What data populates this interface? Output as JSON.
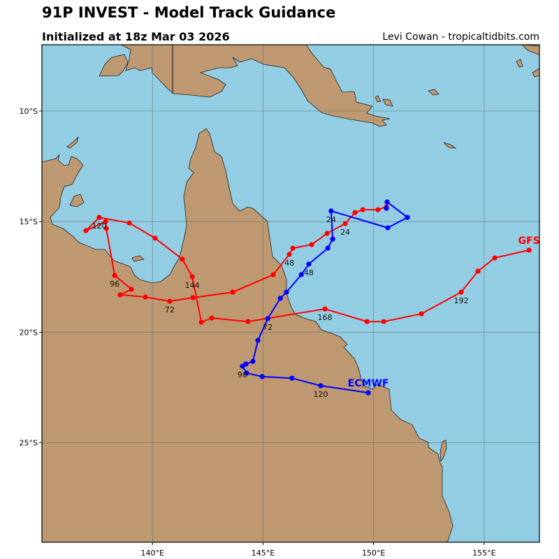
{
  "header": {
    "title": "91P INVEST - Model Track Guidance",
    "subtitle": "Initialized at 18z Mar 03 2026",
    "credit": "Levi Cowan - tropicaltidbits.com"
  },
  "map": {
    "lon_range": [
      135,
      157.5
    ],
    "lat_range_south": [
      7,
      29.5
    ],
    "lat_ticks": [
      {
        "value": 10,
        "label": "10°S"
      },
      {
        "value": 15,
        "label": "15°S"
      },
      {
        "value": 20,
        "label": "20°S"
      },
      {
        "value": 25,
        "label": "25°S"
      }
    ],
    "lon_ticks": [
      {
        "value": 140,
        "label": "140°E"
      },
      {
        "value": 145,
        "label": "145°E"
      },
      {
        "value": 150,
        "label": "150°E"
      },
      {
        "value": 155,
        "label": "155°E"
      }
    ],
    "colors": {
      "ocean": "#93CDE3",
      "land": "#BE9870",
      "grid": "#5a6b70"
    }
  },
  "tracks": [
    {
      "name": "GFS",
      "color": "#FF0000",
      "points": [
        {
          "lon": 150.58,
          "lat": 14.33
        },
        {
          "lon": 150.2,
          "lat": 14.46
        },
        {
          "lon": 149.51,
          "lat": 14.46
        },
        {
          "lon": 149.16,
          "lat": 14.59
        },
        {
          "lon": 148.72,
          "lat": 15.09,
          "label": "24"
        },
        {
          "lon": 147.9,
          "lat": 15.53
        },
        {
          "lon": 147.2,
          "lat": 16.04
        },
        {
          "lon": 146.35,
          "lat": 16.2
        },
        {
          "lon": 146.19,
          "lat": 16.48,
          "label": "48"
        },
        {
          "lon": 145.46,
          "lat": 17.4
        },
        {
          "lon": 143.63,
          "lat": 18.19
        },
        {
          "lon": 141.83,
          "lat": 18.44
        },
        {
          "lon": 140.78,
          "lat": 18.6,
          "label": "72"
        },
        {
          "lon": 139.68,
          "lat": 18.41
        },
        {
          "lon": 138.54,
          "lat": 18.31
        },
        {
          "lon": 139.05,
          "lat": 18.06
        },
        {
          "lon": 138.29,
          "lat": 17.43,
          "label": "96"
        },
        {
          "lon": 137.91,
          "lat": 15.31
        },
        {
          "lon": 137.88,
          "lat": 15.0
        },
        {
          "lon": 136.99,
          "lat": 15.41
        },
        {
          "lon": 137.59,
          "lat": 14.81,
          "label": "120"
        },
        {
          "lon": 138.95,
          "lat": 15.06
        },
        {
          "lon": 140.12,
          "lat": 15.75
        },
        {
          "lon": 141.35,
          "lat": 16.7
        },
        {
          "lon": 141.8,
          "lat": 17.49,
          "label": "144"
        },
        {
          "lon": 142.21,
          "lat": 19.55
        },
        {
          "lon": 142.68,
          "lat": 19.36
        },
        {
          "lon": 144.32,
          "lat": 19.52
        },
        {
          "lon": 147.8,
          "lat": 18.95,
          "label": "168"
        },
        {
          "lon": 149.7,
          "lat": 19.52
        },
        {
          "lon": 150.46,
          "lat": 19.52
        },
        {
          "lon": 152.16,
          "lat": 19.17
        },
        {
          "lon": 153.96,
          "lat": 18.19,
          "label": "192"
        },
        {
          "lon": 154.72,
          "lat": 17.24
        },
        {
          "lon": 155.48,
          "lat": 16.64
        },
        {
          "lon": 157.03,
          "lat": 16.29
        }
      ]
    },
    {
      "name": "ECMWF",
      "color": "#0000FF",
      "points": [
        {
          "lon": 150.58,
          "lat": 14.4
        },
        {
          "lon": 150.61,
          "lat": 14.11
        },
        {
          "lon": 151.53,
          "lat": 14.81
        },
        {
          "lon": 150.64,
          "lat": 15.28
        },
        {
          "lon": 148.08,
          "lat": 14.52,
          "label": "24"
        },
        {
          "lon": 148.15,
          "lat": 15.79
        },
        {
          "lon": 147.93,
          "lat": 16.2
        },
        {
          "lon": 147.07,
          "lat": 16.92,
          "label": "48"
        },
        {
          "lon": 146.73,
          "lat": 17.4
        },
        {
          "lon": 146.06,
          "lat": 18.19
        },
        {
          "lon": 145.78,
          "lat": 18.47
        },
        {
          "lon": 145.21,
          "lat": 19.39,
          "label": "72"
        },
        {
          "lon": 144.77,
          "lat": 20.37
        },
        {
          "lon": 144.54,
          "lat": 21.32
        },
        {
          "lon": 144.23,
          "lat": 21.44
        },
        {
          "lon": 144.07,
          "lat": 21.54,
          "label": "96"
        },
        {
          "lon": 144.26,
          "lat": 21.85
        },
        {
          "lon": 144.96,
          "lat": 22.01
        },
        {
          "lon": 146.31,
          "lat": 22.08
        },
        {
          "lon": 147.61,
          "lat": 22.42,
          "label": "120"
        },
        {
          "lon": 149.76,
          "lat": 22.74
        }
      ]
    }
  ]
}
